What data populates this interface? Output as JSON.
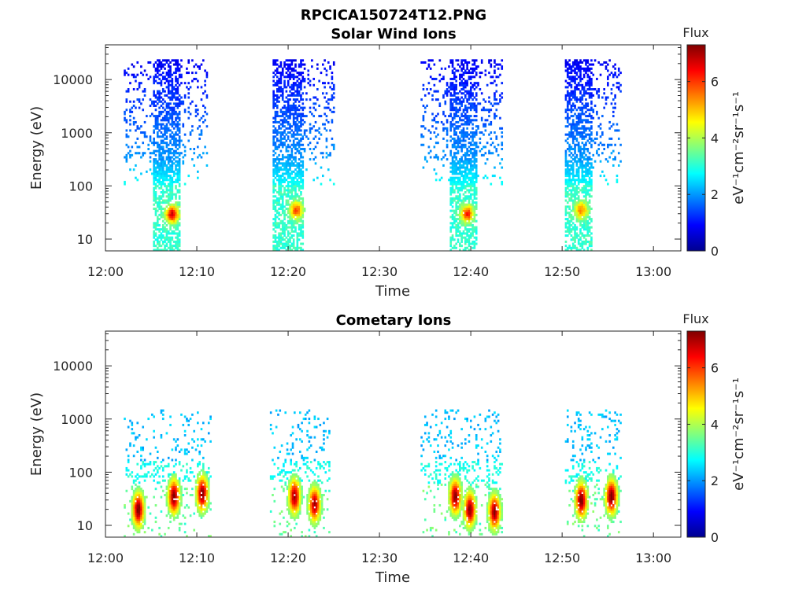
{
  "figure": {
    "title": "RPCICA150724T12.PNG"
  },
  "colorbar": {
    "label": "Flux",
    "unit": "eV⁻¹cm⁻²sr⁻¹s⁻¹",
    "range": [
      0,
      7.3
    ],
    "ticks": [
      "0",
      "2",
      "4",
      "6"
    ],
    "colormap": "jet"
  },
  "chart_data": [
    {
      "type": "heatmap",
      "title": "Solar Wind Ions",
      "xlabel": "Time",
      "ylabel": "Energy (eV)",
      "x_ticks": [
        "12:00",
        "12:10",
        "12:20",
        "12:30",
        "12:40",
        "12:50",
        "13:00"
      ],
      "xlim_minutes": [
        0,
        63
      ],
      "y_scale": "log",
      "y_ticks": [
        "10",
        "100",
        "1000",
        "10000"
      ],
      "ylim": [
        6,
        45000
      ],
      "grid": false,
      "bursts": [
        {
          "start_min": 2.0,
          "end_min": 11.0,
          "core_min": 5.2,
          "core_width": 3.0,
          "peak_flux": 6.8,
          "peak_min": 7.2,
          "peak_energy_eV": 30
        },
        {
          "start_min": 18.3,
          "end_min": 25.0,
          "core_min": 18.3,
          "core_width": 3.3,
          "peak_flux": 6.0,
          "peak_min": 20.8,
          "peak_energy_eV": 35
        },
        {
          "start_min": 34.5,
          "end_min": 43.5,
          "core_min": 37.6,
          "core_width": 3.0,
          "peak_flux": 6.3,
          "peak_min": 39.5,
          "peak_energy_eV": 30
        },
        {
          "start_min": 50.3,
          "end_min": 56.5,
          "core_min": 50.3,
          "core_width": 3.0,
          "peak_flux": 5.6,
          "peak_min": 52.0,
          "peak_energy_eV": 35
        }
      ]
    },
    {
      "type": "heatmap",
      "title": "Cometary Ions",
      "xlabel": "Time",
      "ylabel": "Energy (eV)",
      "x_ticks": [
        "12:00",
        "12:10",
        "12:20",
        "12:30",
        "12:40",
        "12:50",
        "13:00"
      ],
      "xlim_minutes": [
        0,
        63
      ],
      "y_scale": "log",
      "y_ticks": [
        "10",
        "100",
        "1000",
        "10000"
      ],
      "ylim": [
        6,
        45000
      ],
      "grid": false,
      "bursts": [
        {
          "start_min": 2.0,
          "end_min": 11.5,
          "peak_flux": 7.2,
          "peaks": [
            {
              "min": 3.5,
              "energy_eV": 20
            },
            {
              "min": 7.4,
              "energy_eV": 35
            },
            {
              "min": 10.5,
              "energy_eV": 40
            }
          ]
        },
        {
          "start_min": 18.0,
          "end_min": 24.5,
          "peak_flux": 7.0,
          "peaks": [
            {
              "min": 20.6,
              "energy_eV": 35
            },
            {
              "min": 22.8,
              "energy_eV": 25
            }
          ]
        },
        {
          "start_min": 34.5,
          "end_min": 43.5,
          "peak_flux": 7.1,
          "peaks": [
            {
              "min": 38.2,
              "energy_eV": 35
            },
            {
              "min": 39.8,
              "energy_eV": 20
            },
            {
              "min": 42.5,
              "energy_eV": 18
            }
          ]
        },
        {
          "start_min": 50.3,
          "end_min": 56.5,
          "peak_flux": 7.3,
          "peaks": [
            {
              "min": 52.0,
              "energy_eV": 30
            },
            {
              "min": 55.3,
              "energy_eV": 35
            }
          ]
        }
      ]
    }
  ]
}
